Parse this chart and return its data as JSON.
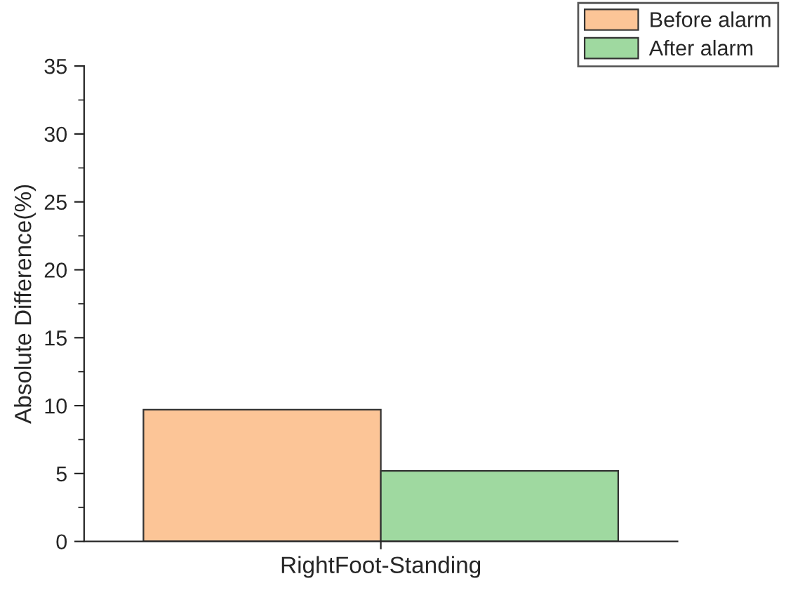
{
  "chart_data": {
    "type": "bar",
    "ylabel": "Absolute Difference(%)",
    "categories": [
      "RightFoot-Standing"
    ],
    "series": [
      {
        "name": "Before alarm",
        "color": "#fcc597",
        "values": [
          9.7
        ]
      },
      {
        "name": "After alarm",
        "color": "#9fd9a0",
        "values": [
          5.2
        ]
      }
    ],
    "ylim": [
      0,
      35
    ],
    "yticks": [
      0,
      5,
      10,
      15,
      20,
      25,
      30,
      35
    ],
    "grid": false,
    "legend": "top right"
  }
}
